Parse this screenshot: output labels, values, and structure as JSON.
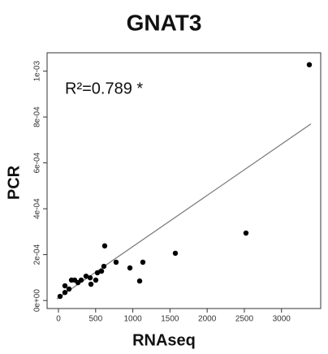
{
  "chart_data": {
    "type": "scatter",
    "title": "GNAT3",
    "xlabel": "RNAseq",
    "ylabel": "PCR",
    "annotation": "R²=0.789 *",
    "x": [
      22,
      87,
      142,
      87,
      218,
      175,
      306,
      262,
      371,
      437,
      426,
      502,
      524,
      579,
      611,
      622,
      775,
      961,
      1092,
      1135,
      1572,
      2522,
      3374
    ],
    "values": [
      1.8e-05,
      3.5e-05,
      5e-05,
      6.4e-05,
      8.9e-05,
      8.9e-05,
      8.9e-05,
      7.8e-05,
      0.000106,
      7.1e-05,
      9.9e-05,
      8.9e-05,
      0.000121,
      0.000128,
      0.000149,
      0.000238,
      0.000167,
      0.000142,
      8.5e-05,
      0.000167,
      0.000206,
      0.000294,
      0.001028
    ],
    "color": "#000000",
    "fit_line": {
      "x": [
        -22,
        3396
      ],
      "values": [
        7e-06,
        0.00077
      ],
      "color": "#777777"
    },
    "xlim": [
      -153,
      3527
    ],
    "ylim": [
      -3.5e-05,
      0.00108
    ],
    "xticks": [
      0,
      500,
      1000,
      1500,
      2000,
      2500,
      3000
    ],
    "yticks": [
      {
        "value": 0,
        "label": "0e+00"
      },
      {
        "value": 0.0002,
        "label": "2e-04"
      },
      {
        "value": 0.0004,
        "label": "4e-04"
      },
      {
        "value": 0.0006,
        "label": "6e-04"
      },
      {
        "value": 0.0008,
        "label": "8e-04"
      },
      {
        "value": 0.001,
        "label": "1e-03"
      }
    ]
  }
}
